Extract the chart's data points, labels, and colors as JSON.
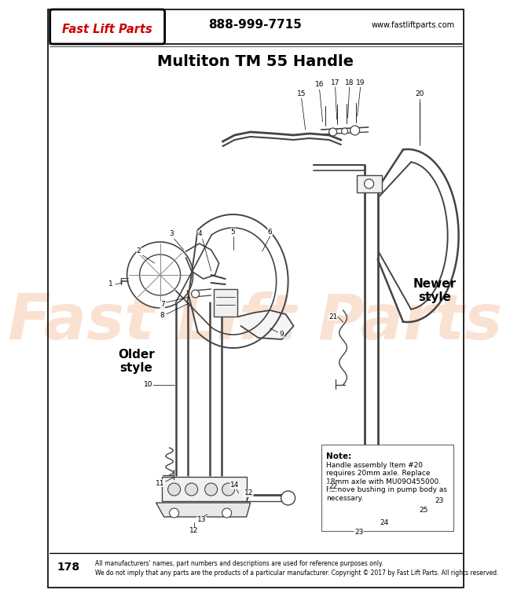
{
  "title": "Multiton TM 55 Handle",
  "phone": "888-999-7715",
  "website": "www.fastliftparts.com",
  "logo_text": "Fast Lift Parts",
  "page_number": "178",
  "footer_text1": "All manufacturers' names, part numbers and descriptions are used for reference purposes only.",
  "footer_text2": "We do not imply that any parts are the products of a particular manufacturer. Copyright © 2017 by Fast Lift Parts. All rights reserved.",
  "note_title": "Note:",
  "note_body": "Handle assembly Item #20\nrequires 20mm axle. Replace\n18mm axle with MU09O455000.\nRemove bushing in pump body as\nnecessary.",
  "older_style_label": "Older\nstyle",
  "newer_style_label": "Newer\nstyle",
  "bg_color": "#ffffff",
  "lc": "#444444",
  "watermark_text": "Fast Lift Parts",
  "watermark_color": "#f0a070",
  "watermark_alpha": 0.3
}
